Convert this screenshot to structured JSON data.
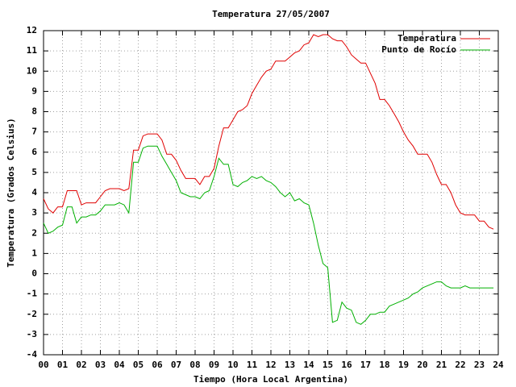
{
  "chart_data": {
    "type": "line",
    "title": "Temperatura 27/05/2007",
    "x_label": "Tiempo (Hora Local Argentina)",
    "y_label": "Temperatura (Grados Celsius)",
    "x": [
      0,
      0.25,
      0.5,
      0.75,
      1,
      1.25,
      1.5,
      1.75,
      2,
      2.25,
      2.5,
      2.75,
      3,
      3.25,
      3.5,
      3.75,
      4,
      4.25,
      4.5,
      4.75,
      5,
      5.25,
      5.5,
      5.75,
      6,
      6.25,
      6.5,
      6.75,
      7,
      7.25,
      7.5,
      7.75,
      8,
      8.25,
      8.5,
      8.75,
      9,
      9.25,
      9.5,
      9.75,
      10,
      10.25,
      10.5,
      10.75,
      11,
      11.25,
      11.5,
      11.75,
      12,
      12.25,
      12.5,
      12.75,
      13,
      13.25,
      13.5,
      13.75,
      14,
      14.25,
      14.5,
      14.75,
      15,
      15.25,
      15.5,
      15.75,
      16,
      16.25,
      16.5,
      16.75,
      17,
      17.25,
      17.5,
      17.75,
      18,
      18.25,
      18.5,
      18.75,
      19,
      19.25,
      19.5,
      19.75,
      20,
      20.25,
      20.5,
      20.75,
      21,
      21.25,
      21.5,
      21.75,
      22,
      22.25,
      22.5,
      22.75,
      23,
      23.25,
      23.5,
      23.75
    ],
    "series": [
      {
        "name": "Temperatura",
        "color": "#e00000",
        "values": [
          3.7,
          3.2,
          3.0,
          3.3,
          3.3,
          4.1,
          4.1,
          4.1,
          3.4,
          3.5,
          3.5,
          3.5,
          3.8,
          4.1,
          4.2,
          4.2,
          4.2,
          4.1,
          4.2,
          6.1,
          6.1,
          6.8,
          6.9,
          6.9,
          6.9,
          6.6,
          5.9,
          5.9,
          5.6,
          5.1,
          4.7,
          4.7,
          4.7,
          4.4,
          4.8,
          4.8,
          5.2,
          6.3,
          7.2,
          7.2,
          7.6,
          8.0,
          8.1,
          8.3,
          8.9,
          9.3,
          9.7,
          10.0,
          10.1,
          10.5,
          10.5,
          10.5,
          10.7,
          10.9,
          11.0,
          11.3,
          11.4,
          11.8,
          11.7,
          11.8,
          11.8,
          11.6,
          11.5,
          11.5,
          11.2,
          10.8,
          10.6,
          10.4,
          10.4,
          9.9,
          9.4,
          8.6,
          8.6,
          8.3,
          7.9,
          7.5,
          7.0,
          6.6,
          6.3,
          5.9,
          5.9,
          5.9,
          5.5,
          4.9,
          4.4,
          4.4,
          4.0,
          3.4,
          3.0,
          2.9,
          2.9,
          2.9,
          2.6,
          2.6,
          2.3,
          2.2
        ]
      },
      {
        "name": "Punto de Rocío",
        "color": "#00b000",
        "values": [
          2.5,
          2.0,
          2.1,
          2.3,
          2.4,
          3.3,
          3.3,
          2.5,
          2.8,
          2.8,
          2.9,
          2.9,
          3.1,
          3.4,
          3.4,
          3.4,
          3.5,
          3.4,
          3.0,
          5.5,
          5.5,
          6.2,
          6.3,
          6.3,
          6.3,
          5.8,
          5.4,
          5.0,
          4.6,
          4.0,
          3.9,
          3.8,
          3.8,
          3.7,
          4.0,
          4.1,
          4.8,
          5.7,
          5.4,
          5.4,
          4.4,
          4.3,
          4.5,
          4.6,
          4.8,
          4.7,
          4.8,
          4.6,
          4.5,
          4.3,
          4.0,
          3.8,
          4.0,
          3.6,
          3.7,
          3.5,
          3.4,
          2.5,
          1.4,
          0.5,
          0.3,
          -2.4,
          -2.3,
          -1.4,
          -1.7,
          -1.8,
          -2.4,
          -2.5,
          -2.3,
          -2.0,
          -2.0,
          -1.9,
          -1.9,
          -1.6,
          -1.5,
          -1.4,
          -1.3,
          -1.2,
          -1.0,
          -0.9,
          -0.7,
          -0.6,
          -0.5,
          -0.4,
          -0.4,
          -0.6,
          -0.7,
          -0.7,
          -0.7,
          -0.6,
          -0.7,
          -0.7,
          -0.7,
          -0.7,
          -0.7,
          -0.7
        ]
      }
    ],
    "xlim": [
      0,
      24
    ],
    "xticks": [
      {
        "value": 0,
        "label": "00"
      },
      {
        "value": 1,
        "label": "01"
      },
      {
        "value": 2,
        "label": "02"
      },
      {
        "value": 3,
        "label": "03"
      },
      {
        "value": 4,
        "label": "04"
      },
      {
        "value": 5,
        "label": "05"
      },
      {
        "value": 6,
        "label": "06"
      },
      {
        "value": 7,
        "label": "07"
      },
      {
        "value": 8,
        "label": "08"
      },
      {
        "value": 9,
        "label": "09"
      },
      10,
      11,
      12,
      13,
      14,
      15,
      16,
      17,
      18,
      19,
      20,
      21,
      22,
      23,
      24
    ],
    "ylim": [
      -4,
      12
    ],
    "yticks": [
      -4,
      -3,
      -2,
      -1,
      0,
      1,
      2,
      3,
      4,
      5,
      6,
      7,
      8,
      9,
      10,
      11,
      12
    ],
    "grid": true,
    "legend": "top-right"
  }
}
